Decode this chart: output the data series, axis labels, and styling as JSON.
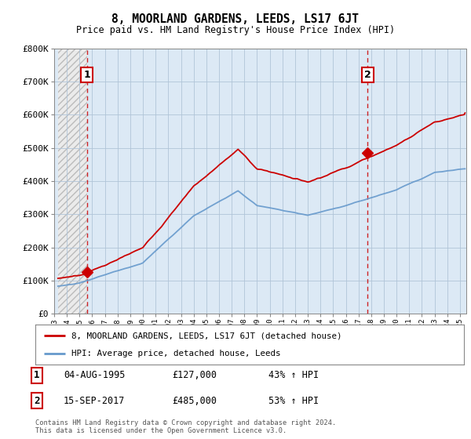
{
  "title": "8, MOORLAND GARDENS, LEEDS, LS17 6JT",
  "subtitle": "Price paid vs. HM Land Registry's House Price Index (HPI)",
  "ylim": [
    0,
    800000
  ],
  "yticks": [
    0,
    100000,
    200000,
    300000,
    400000,
    500000,
    600000,
    700000,
    800000
  ],
  "ytick_labels": [
    "£0",
    "£100K",
    "£200K",
    "£300K",
    "£400K",
    "£500K",
    "£600K",
    "£700K",
    "£800K"
  ],
  "xlim_start": 1993.3,
  "xlim_end": 2025.5,
  "xticks": [
    1993,
    1994,
    1995,
    1996,
    1997,
    1998,
    1999,
    2000,
    2001,
    2002,
    2003,
    2004,
    2005,
    2006,
    2007,
    2008,
    2009,
    2010,
    2011,
    2012,
    2013,
    2014,
    2015,
    2016,
    2017,
    2018,
    2019,
    2020,
    2021,
    2022,
    2023,
    2024,
    2025
  ],
  "property_color": "#cc0000",
  "hpi_color": "#6699cc",
  "sale1_x": 1995.59,
  "sale1_y": 127000,
  "sale1_label": "1",
  "sale2_x": 2017.71,
  "sale2_y": 485000,
  "sale2_label": "2",
  "legend_property": "8, MOORLAND GARDENS, LEEDS, LS17 6JT (detached house)",
  "legend_hpi": "HPI: Average price, detached house, Leeds",
  "annot1_date": "04-AUG-1995",
  "annot1_price": "£127,000",
  "annot1_hpi": "43% ↑ HPI",
  "annot2_date": "15-SEP-2017",
  "annot2_price": "£485,000",
  "annot2_hpi": "53% ↑ HPI",
  "footer": "Contains HM Land Registry data © Crown copyright and database right 2024.\nThis data is licensed under the Open Government Licence v3.0.",
  "bg_color": "#ffffff",
  "plot_bg_color": "#dce9f5",
  "hatch_region_color": "#e8e8e8"
}
